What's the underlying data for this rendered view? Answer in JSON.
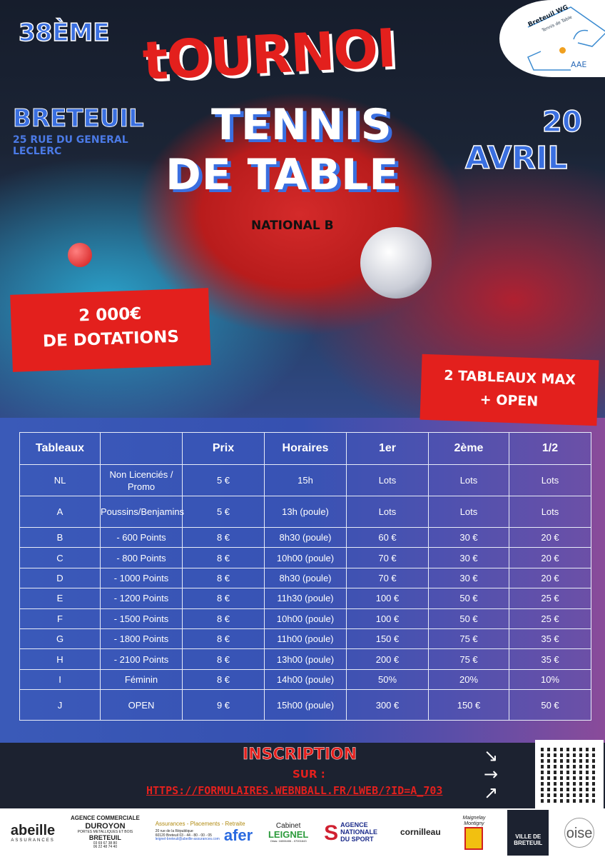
{
  "poster": {
    "edition": "38ÈME",
    "title_main": "tOURNOI",
    "title_line1": "TENNIS",
    "title_line2": "DE TABLE",
    "level": "NATIONAL B",
    "city": "BRETEUIL",
    "address": "25 RUE DU GENERAL LECLERC",
    "date_day": "20",
    "date_month": "AVRIL",
    "prize_amount": "2 000€",
    "prize_label": "DE DOTATIONS",
    "max_tables_line1": "2 TABLEAUX MAX",
    "max_tables_line2": "+ OPEN",
    "accent_red": "#e3201d",
    "accent_blue": "#3a6fe0"
  },
  "club_logo": {
    "name": "Breteuil WG",
    "sub": "Tennis de Table",
    "initials": "AAE"
  },
  "table": {
    "headers": [
      "Tableaux",
      "",
      "Prix",
      "Horaires",
      "1er",
      "2ème",
      "1/2"
    ],
    "rows": [
      [
        "NL",
        "Non Licenciés / Promo",
        "5 €",
        "15h",
        "Lots",
        "Lots",
        "Lots"
      ],
      [
        "A",
        "Poussins/Benjamins",
        "5 €",
        "13h (poule)",
        "Lots",
        "Lots",
        "Lots"
      ],
      [
        "B",
        "- 600 Points",
        "8 €",
        "8h30 (poule)",
        "60 €",
        "30 €",
        "20 €"
      ],
      [
        "C",
        "- 800 Points",
        "8 €",
        "10h00 (poule)",
        "70 €",
        "30 €",
        "20 €"
      ],
      [
        "D",
        "- 1000 Points",
        "8 €",
        "8h30 (poule)",
        "70 €",
        "30 €",
        "20 €"
      ],
      [
        "E",
        "- 1200 Points",
        "8 €",
        "11h30 (poule)",
        "100 €",
        "50 €",
        "25 €"
      ],
      [
        "F",
        "- 1500 Points",
        "8 €",
        "10h00 (poule)",
        "100 €",
        "50 €",
        "25 €"
      ],
      [
        "G",
        "- 1800 Points",
        "8 €",
        "11h00 (poule)",
        "150 €",
        "75 €",
        "35 €"
      ],
      [
        "H",
        "- 2100 Points",
        "8 €",
        "13h00 (poule)",
        "200 €",
        "75 €",
        "35 €"
      ],
      [
        "I",
        "Féminin",
        "8 €",
        "14h00 (poule)",
        "50%",
        "20%",
        "10%"
      ],
      [
        "J",
        "OPEN",
        "9 €",
        "15h00 (poule)",
        "300 €",
        "150 €",
        "50 €"
      ]
    ]
  },
  "registration": {
    "title": "INSCRIPTION",
    "sur": "SUR :",
    "url": "HTTPS://FORMULAIRES.WEBNBALL.FR/LWEB/?ID=A_703"
  },
  "sponsors": {
    "abeille": "abeille",
    "abeille_sub": "ASSURANCES",
    "duroyon_l1": "AGENCE COMMERCIALE",
    "duroyon_l2": "DUROYON",
    "duroyon_l3": "PORTES METALLIQUES ET BOIS",
    "duroyon_l4": "BRETEUIL",
    "duroyon_l5": "03 69 67 38 80",
    "duroyon_l6": "06 22 48 74 40",
    "afer_l1": "Assurances - Placements - Retraite",
    "afer_l2": "20 rue de la République",
    "afer_l3": "60120 Breteuil  03 - 44 - 80 - 00 - 05",
    "afer_l4": "leignel-breteuil@abeille-assurances.com",
    "afer": "afer",
    "leignel_l1": "Cabinet",
    "leignel_l2": "LEIGNEL",
    "leignel_l3": "Orias: 16006406 - 07001643",
    "ans": "AGENCE NATIONALE DU SPORT",
    "cornilleau": "cornilleau",
    "maignelay": "Maignelay Montigny",
    "ville": "VILLE DE BRETEUIL",
    "oise": "oise"
  }
}
